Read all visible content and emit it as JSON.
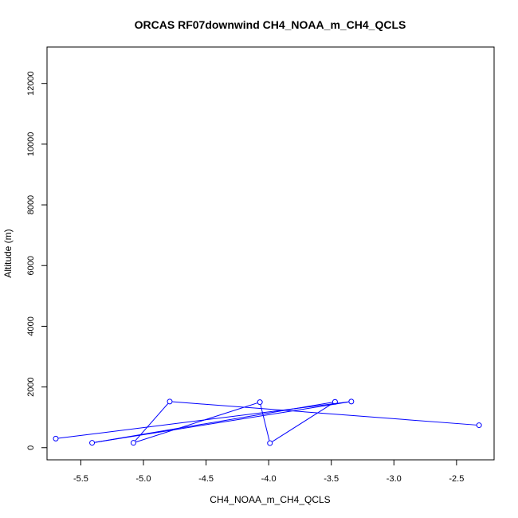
{
  "chart_data": {
    "type": "line",
    "title": "ORCAS RF07downwind CH4_NOAA_m_CH4_QCLS",
    "xlabel": "CH4_NOAA_m_CH4_QCLS",
    "ylabel": "Altitude (m)",
    "xlim": [
      -5.77,
      -2.2
    ],
    "ylim": [
      -400,
      13200
    ],
    "xticks": [
      -5.5,
      -5.0,
      -4.5,
      -4.0,
      -3.5,
      -3.0,
      -2.5
    ],
    "xtick_labels": [
      "-5.5",
      "-5.0",
      "-4.5",
      "-4.0",
      "-3.5",
      "-3.0",
      "-2.5"
    ],
    "yticks": [
      0,
      2000,
      4000,
      6000,
      8000,
      10000,
      12000
    ],
    "ytick_labels": [
      "0",
      "2000",
      "4000",
      "6000",
      "8000",
      "10000",
      "12000"
    ],
    "series": [
      {
        "color": "#0000ff",
        "marker": "open-circle",
        "x": [
          -2.32,
          -4.79,
          -5.08,
          -4.07,
          -3.99,
          -3.47,
          -5.41,
          -3.34,
          -5.7
        ],
        "y": [
          740,
          1520,
          160,
          1500,
          150,
          1510,
          160,
          1520,
          300
        ]
      }
    ]
  }
}
